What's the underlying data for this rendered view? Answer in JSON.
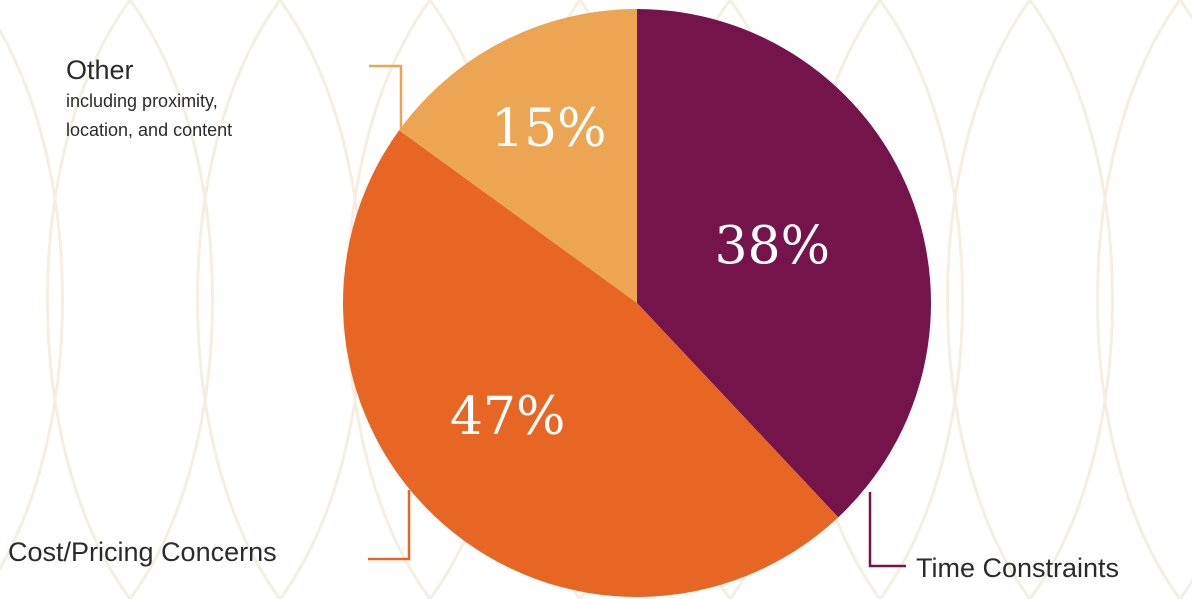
{
  "chart_data": {
    "type": "pie",
    "title": "",
    "slices": [
      {
        "label": "Time Constraints",
        "value": 38,
        "display": "38%",
        "color": "#74144b"
      },
      {
        "label": "Cost/Pricing Concerns",
        "value": 47,
        "display": "47%",
        "color": "#e76623"
      },
      {
        "label": "Other",
        "sublabel": "including proximity, location, and content",
        "value": 15,
        "display": "15%",
        "color": "#eca553"
      }
    ],
    "legend": "callout labels with leader lines"
  },
  "labels": {
    "other_title": "Other",
    "other_sub_line1": "including proximity,",
    "other_sub_line2": "location, and content",
    "cost": "Cost/Pricing Concerns",
    "time": "Time Constraints"
  },
  "colors": {
    "background_pattern": "#f6efe1",
    "leader_orange": "#e76623",
    "leader_purple": "#74144b",
    "leader_light": "#eca553"
  }
}
